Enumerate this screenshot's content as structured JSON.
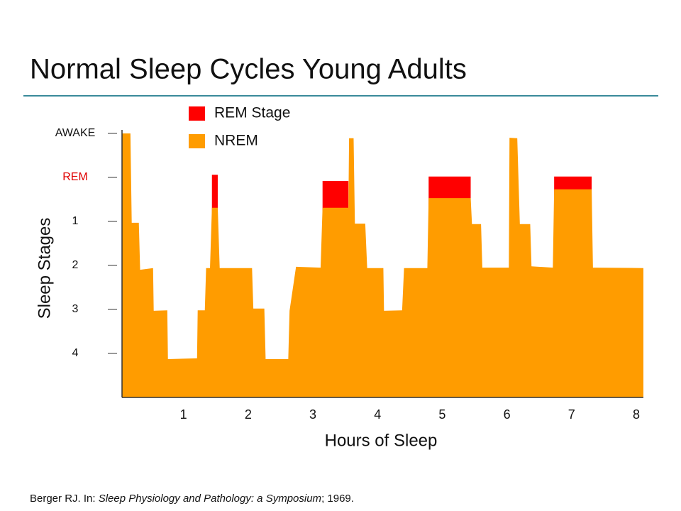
{
  "chart_data": {
    "type": "area",
    "title": "Normal Sleep Cycles Young Adults",
    "x_label": "Hours of Sleep",
    "y_label": "Sleep Stages",
    "xlim": [
      0.05,
      8.11
    ],
    "xticks": [
      1,
      2,
      3,
      4,
      5,
      6,
      7,
      8
    ],
    "ylim": [
      0,
      6.08
    ],
    "yticks": [
      {
        "value": 1,
        "label": "4"
      },
      {
        "value": 2,
        "label": "3"
      },
      {
        "value": 3,
        "label": "2"
      },
      {
        "value": 4,
        "label": "1"
      },
      {
        "value": 5,
        "label": "REM"
      },
      {
        "value": 6,
        "label": "AWAKE"
      }
    ],
    "series": [
      {
        "name": "REM Stage",
        "color": "#ff0000",
        "x_start": [
          1.44,
          3.15,
          4.79,
          6.73
        ],
        "x_end": [
          1.53,
          3.55,
          5.44,
          7.31
        ],
        "values": [
          5.06,
          4.92,
          5.02,
          5.02
        ]
      },
      {
        "name": "NREM",
        "color": "#ff9c00",
        "x": [
          0.05,
          0.18,
          0.2,
          0.31,
          0.33,
          0.53,
          0.54,
          0.75,
          0.76,
          1.21,
          1.22,
          1.33,
          1.35,
          1.41,
          1.44,
          1.53,
          1.56,
          2.06,
          2.08,
          2.25,
          2.27,
          2.62,
          2.64,
          2.74,
          3.12,
          3.15,
          3.55,
          3.56,
          3.63,
          3.65,
          3.81,
          3.84,
          4.09,
          4.1,
          4.38,
          4.41,
          4.77,
          4.79,
          5.44,
          5.46,
          5.6,
          5.62,
          6.03,
          6.04,
          6.16,
          6.2,
          6.36,
          6.38,
          6.71,
          6.73,
          7.31,
          7.33,
          8.11
        ],
        "values": [
          6.0,
          6.0,
          3.97,
          3.97,
          2.9,
          2.94,
          1.97,
          1.98,
          0.87,
          0.89,
          1.98,
          1.98,
          2.94,
          2.94,
          4.31,
          4.31,
          2.94,
          2.94,
          2.02,
          2.02,
          0.87,
          0.87,
          1.97,
          2.97,
          2.95,
          4.31,
          4.31,
          5.89,
          5.89,
          3.95,
          3.95,
          2.94,
          2.94,
          1.97,
          1.98,
          2.94,
          2.94,
          4.53,
          4.53,
          3.94,
          3.94,
          2.95,
          2.95,
          5.9,
          5.89,
          3.94,
          3.94,
          2.98,
          2.95,
          4.73,
          4.73,
          2.95,
          2.94
        ]
      }
    ],
    "source": {
      "prefix": "Berger RJ. In: ",
      "title": "Sleep Physiology and Pathology: a Symposium",
      "suffix": "; 1969."
    }
  }
}
